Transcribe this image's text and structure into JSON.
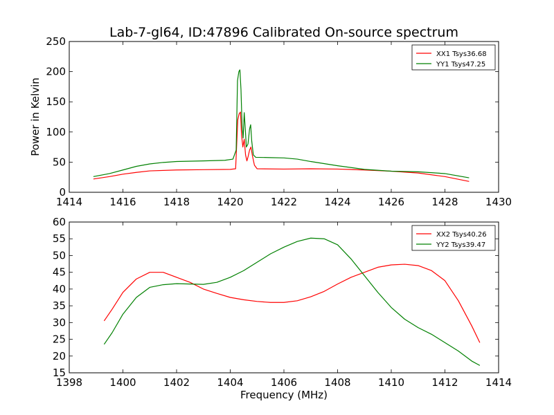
{
  "title": "Lab-7-gl64, ID:47896 Calibrated On-source spectrum",
  "colors": {
    "red": "#ff0000",
    "green": "#008000"
  },
  "chart_data": [
    {
      "type": "line",
      "title": "",
      "xlabel": "",
      "ylabel": "Power in Kelvin",
      "xlim": [
        1414,
        1430
      ],
      "ylim": [
        0,
        250
      ],
      "xticks": [
        1414,
        1416,
        1418,
        1420,
        1422,
        1424,
        1426,
        1428,
        1430
      ],
      "yticks": [
        0,
        50,
        100,
        150,
        200,
        250
      ],
      "legend_position": "top-right",
      "series": [
        {
          "name": "XX1 Tsys36.68",
          "color": "#ff0000",
          "points": [
            [
              1414.9,
              22
            ],
            [
              1415.5,
              26
            ],
            [
              1416,
              30
            ],
            [
              1416.5,
              33
            ],
            [
              1417,
              35.5
            ],
            [
              1418,
              37
            ],
            [
              1419,
              37.5
            ],
            [
              1420,
              38
            ],
            [
              1420.2,
              39
            ],
            [
              1420.28,
              120
            ],
            [
              1420.33,
              130
            ],
            [
              1420.38,
              133
            ],
            [
              1420.42,
              95
            ],
            [
              1420.47,
              75
            ],
            [
              1420.52,
              88
            ],
            [
              1420.57,
              62
            ],
            [
              1420.62,
              52
            ],
            [
              1420.67,
              60
            ],
            [
              1420.72,
              70
            ],
            [
              1420.77,
              75
            ],
            [
              1420.82,
              62
            ],
            [
              1420.9,
              45
            ],
            [
              1421.0,
              39
            ],
            [
              1422,
              38.5
            ],
            [
              1423,
              39
            ],
            [
              1424,
              38.5
            ],
            [
              1425,
              37
            ],
            [
              1426,
              35
            ],
            [
              1427,
              32
            ],
            [
              1428,
              26
            ],
            [
              1428.9,
              18
            ]
          ]
        },
        {
          "name": "YY1 Tsys47.25",
          "color": "#008000",
          "points": [
            [
              1414.9,
              26
            ],
            [
              1415.5,
              31
            ],
            [
              1416,
              37
            ],
            [
              1416.5,
              43
            ],
            [
              1417,
              47
            ],
            [
              1417.5,
              49.5
            ],
            [
              1418,
              51
            ],
            [
              1419,
              52
            ],
            [
              1419.8,
              53
            ],
            [
              1420.1,
              55
            ],
            [
              1420.22,
              70
            ],
            [
              1420.27,
              185
            ],
            [
              1420.32,
              200
            ],
            [
              1420.36,
              203
            ],
            [
              1420.4,
              170
            ],
            [
              1420.44,
              110
            ],
            [
              1420.48,
              90
            ],
            [
              1420.52,
              132
            ],
            [
              1420.56,
              105
            ],
            [
              1420.6,
              75
            ],
            [
              1420.66,
              80
            ],
            [
              1420.72,
              105
            ],
            [
              1420.76,
              112
            ],
            [
              1420.8,
              85
            ],
            [
              1420.86,
              62
            ],
            [
              1420.95,
              58
            ],
            [
              1421.5,
              57.5
            ],
            [
              1422,
              57
            ],
            [
              1422.5,
              55
            ],
            [
              1423,
              51
            ],
            [
              1424,
              44
            ],
            [
              1425,
              38
            ],
            [
              1426,
              35
            ],
            [
              1427,
              34
            ],
            [
              1428,
              31
            ],
            [
              1428.9,
              24
            ]
          ]
        }
      ]
    },
    {
      "type": "line",
      "title": "",
      "xlabel": "Frequency (MHz)",
      "ylabel": "",
      "xlim": [
        1398,
        1414
      ],
      "ylim": [
        15,
        60
      ],
      "xticks": [
        1398,
        1400,
        1402,
        1404,
        1406,
        1408,
        1410,
        1412,
        1414
      ],
      "yticks": [
        15,
        20,
        25,
        30,
        35,
        40,
        45,
        50,
        55,
        60
      ],
      "legend_position": "top-right",
      "series": [
        {
          "name": "XX2 Tsys40.26",
          "color": "#ff0000",
          "points": [
            [
              1399.3,
              30.5
            ],
            [
              1399.6,
              34
            ],
            [
              1400,
              39
            ],
            [
              1400.5,
              43
            ],
            [
              1401,
              45
            ],
            [
              1401.5,
              45
            ],
            [
              1402,
              43.5
            ],
            [
              1402.5,
              42
            ],
            [
              1403,
              40
            ],
            [
              1403.5,
              38.7
            ],
            [
              1404,
              37.5
            ],
            [
              1404.5,
              36.8
            ],
            [
              1405,
              36.3
            ],
            [
              1405.5,
              36
            ],
            [
              1406,
              36
            ],
            [
              1406.5,
              36.5
            ],
            [
              1407,
              37.7
            ],
            [
              1407.5,
              39.3
            ],
            [
              1408,
              41.5
            ],
            [
              1408.5,
              43.5
            ],
            [
              1409,
              45
            ],
            [
              1409.5,
              46.5
            ],
            [
              1410,
              47.2
            ],
            [
              1410.5,
              47.4
            ],
            [
              1411,
              47
            ],
            [
              1411.5,
              45.5
            ],
            [
              1412,
              42.5
            ],
            [
              1412.5,
              36.5
            ],
            [
              1413,
              29
            ],
            [
              1413.3,
              24
            ]
          ]
        },
        {
          "name": "YY2 Tsys39.47",
          "color": "#008000",
          "points": [
            [
              1399.3,
              23.5
            ],
            [
              1399.6,
              27
            ],
            [
              1400,
              32.5
            ],
            [
              1400.5,
              37.5
            ],
            [
              1401,
              40.5
            ],
            [
              1401.5,
              41.3
            ],
            [
              1402,
              41.6
            ],
            [
              1402.5,
              41.5
            ],
            [
              1403,
              41.4
            ],
            [
              1403.5,
              42
            ],
            [
              1404,
              43.5
            ],
            [
              1404.5,
              45.5
            ],
            [
              1405,
              48
            ],
            [
              1405.5,
              50.5
            ],
            [
              1406,
              52.5
            ],
            [
              1406.5,
              54.2
            ],
            [
              1407,
              55.2
            ],
            [
              1407.5,
              55
            ],
            [
              1408,
              53.2
            ],
            [
              1408.5,
              49
            ],
            [
              1409,
              44
            ],
            [
              1409.5,
              39
            ],
            [
              1410,
              34.5
            ],
            [
              1410.5,
              31
            ],
            [
              1411,
              28.5
            ],
            [
              1411.5,
              26.5
            ],
            [
              1412,
              24
            ],
            [
              1412.5,
              21.5
            ],
            [
              1413,
              18.5
            ],
            [
              1413.3,
              17.2
            ]
          ]
        }
      ]
    }
  ]
}
